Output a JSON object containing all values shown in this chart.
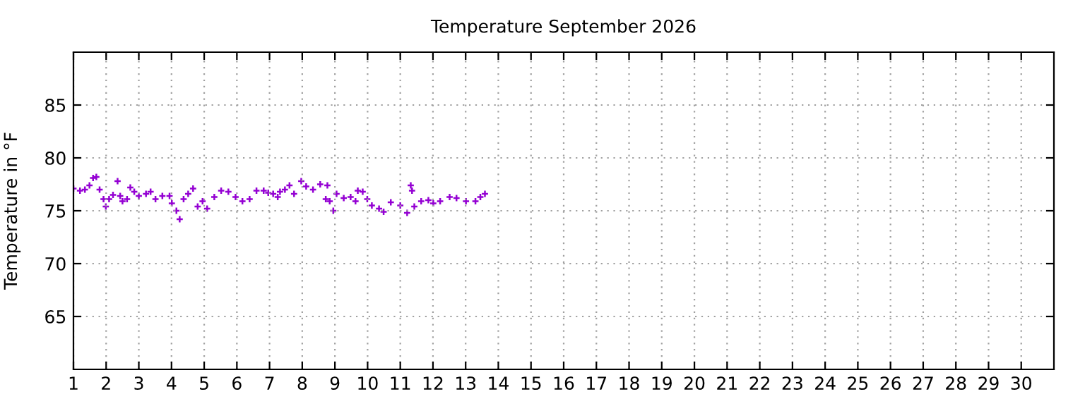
{
  "chart_data": {
    "type": "scatter",
    "title": "Temperature September 2026",
    "ylabel": "Temperature in °F",
    "xlim": [
      1,
      31
    ],
    "xticks": [
      1,
      2,
      3,
      4,
      5,
      6,
      7,
      8,
      9,
      10,
      11,
      12,
      13,
      14,
      15,
      16,
      17,
      18,
      19,
      20,
      21,
      22,
      23,
      24,
      25,
      26,
      27,
      28,
      29,
      30
    ],
    "ylim": [
      60,
      90
    ],
    "yticks": [
      65,
      70,
      75,
      80,
      85
    ],
    "grid": true,
    "marker": "cross",
    "series": [
      {
        "color": "#9400d3",
        "x": [
          1.0,
          1.2,
          1.35,
          1.49,
          1.6,
          1.7,
          1.8,
          1.92,
          1.99,
          2.09,
          2.21,
          2.35,
          2.43,
          2.5,
          2.64,
          2.74,
          2.86,
          3.0,
          3.22,
          3.36,
          3.51,
          3.72,
          3.94,
          4.01,
          4.15,
          4.25,
          4.37,
          4.51,
          4.66,
          4.8,
          4.95,
          5.09,
          5.31,
          5.52,
          5.74,
          5.96,
          6.17,
          6.39,
          6.6,
          6.82,
          6.96,
          7.11,
          7.25,
          7.32,
          7.47,
          7.61,
          7.75,
          7.97,
          8.12,
          8.33,
          8.55,
          8.72,
          8.77,
          8.84,
          8.95,
          9.05,
          9.27,
          9.48,
          9.63,
          9.7,
          9.85,
          9.99,
          10.13,
          10.35,
          10.49,
          10.71,
          11.0,
          11.21,
          11.32,
          11.36,
          11.43,
          11.64,
          11.86,
          12.01,
          12.22,
          12.51,
          12.72,
          13.01,
          13.3,
          13.45,
          13.59
        ],
        "values": [
          77.1,
          76.9,
          77.0,
          77.4,
          78.1,
          78.2,
          77.0,
          76.1,
          75.4,
          76.1,
          76.5,
          77.8,
          76.4,
          75.9,
          76.1,
          77.2,
          76.8,
          76.4,
          76.6,
          76.8,
          76.1,
          76.4,
          76.4,
          75.7,
          75.0,
          74.2,
          76.1,
          76.6,
          77.1,
          75.4,
          75.9,
          75.2,
          76.3,
          76.9,
          76.8,
          76.3,
          75.9,
          76.1,
          76.9,
          76.9,
          76.7,
          76.6,
          76.3,
          76.8,
          77.0,
          77.4,
          76.6,
          77.8,
          77.3,
          77.0,
          77.5,
          76.1,
          77.4,
          75.9,
          75.0,
          76.6,
          76.2,
          76.3,
          75.9,
          76.9,
          76.8,
          76.1,
          75.5,
          75.2,
          74.9,
          75.8,
          75.5,
          74.8,
          77.4,
          76.9,
          75.4,
          75.9,
          76.0,
          75.7,
          75.9,
          76.3,
          76.2,
          75.9,
          75.9,
          76.3,
          76.6
        ]
      }
    ]
  }
}
